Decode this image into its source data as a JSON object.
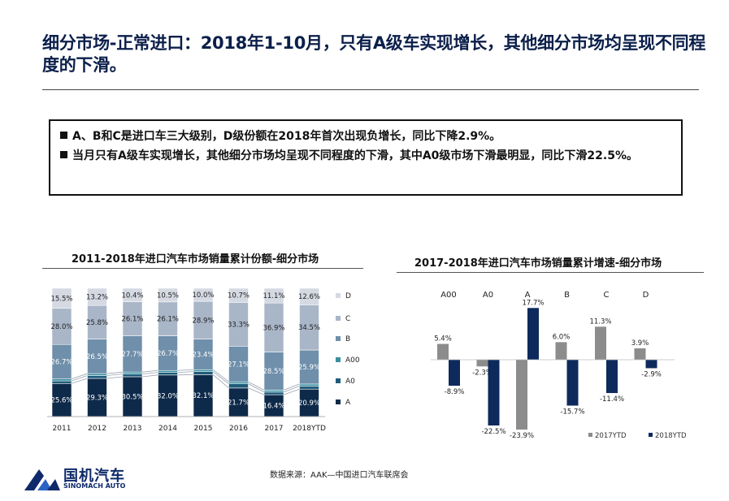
{
  "slide": {
    "title": "细分市场-正常进口：2018年1-10月，只有A级车实现增长，其他细分市场均呈现不同程度的下滑。",
    "bullets": [
      "A、B和C是进口车三大级别，D级份额在2018年首次出现负增长，同比下降2.9%。",
      "当月只有A级车实现增长，其他细分市场均呈现不同程度的下滑，其中A0级市场下滑最明显，同比下滑22.5%。"
    ],
    "source": "数据来源：AAK—中国进口汽车联席会",
    "logo_cn": "国机汽车",
    "logo_en": "SINOMACH AUTO"
  },
  "colors": {
    "title": "#0b1f4a",
    "A": "#0e2a4a",
    "A0": "#1f5c7a",
    "A00": "#3a8fa0",
    "B": "#6f8fab",
    "C": "#a9b6c8",
    "D": "#d4d9e2",
    "y2017": "#8c8c8c",
    "y2018": "#0e2a5c"
  },
  "chart_data": [
    {
      "type": "bar",
      "stacked": true,
      "normalized": true,
      "title": "2011-2018年进口汽车市场销量累计份额-细分市场",
      "categories": [
        "2011",
        "2012",
        "2013",
        "2014",
        "2015",
        "2016",
        "2017",
        "2018YTD"
      ],
      "series": [
        {
          "name": "A",
          "values": [
            25.6,
            29.3,
            30.5,
            32.0,
            32.1,
            21.7,
            16.4,
            20.9
          ],
          "labels": [
            "25.6%",
            "29.3%",
            "30.5%",
            "32.0%",
            "32.1%",
            "21.7%",
            "16.4%",
            "20.9%"
          ]
        },
        {
          "name": "A0",
          "values": [
            2.0,
            2.2,
            2.1,
            2.0,
            2.3,
            3.2,
            2.0,
            2.4
          ],
          "labels": null
        },
        {
          "name": "A00",
          "values": [
            1.5,
            1.5,
            1.5,
            1.5,
            1.5,
            1.5,
            1.5,
            1.5
          ],
          "labels": null
        },
        {
          "name": "B",
          "values": [
            26.7,
            26.5,
            27.7,
            26.7,
            23.4,
            27.1,
            28.5,
            25.9
          ],
          "labels": [
            "26.7%",
            "26.5%",
            "27.7%",
            "26.7%",
            "23.4%",
            "27.1%",
            "28.5%",
            "25.9%"
          ]
        },
        {
          "name": "C",
          "values": [
            28.0,
            25.8,
            26.1,
            26.1,
            28.9,
            33.3,
            36.9,
            34.5
          ],
          "labels": [
            "28.0%",
            "25.8%",
            "26.1%",
            "26.1%",
            "28.9%",
            "33.3%",
            "36.9%",
            "34.5%"
          ]
        },
        {
          "name": "D",
          "values": [
            15.5,
            13.2,
            10.4,
            10.5,
            10.0,
            10.7,
            11.1,
            12.6
          ],
          "labels": [
            "15.5%",
            "13.2%",
            "10.4%",
            "10.5%",
            "10.0%",
            "10.7%",
            "11.1%",
            "12.6%"
          ]
        }
      ],
      "legend": [
        "D",
        "C",
        "B",
        "A00",
        "A0",
        "A"
      ],
      "legend_position": "right"
    },
    {
      "type": "bar",
      "title": "2017-2018年进口汽车市场销量累计增速-细分市场",
      "categories": [
        "A00",
        "A0",
        "A",
        "B",
        "C",
        "D"
      ],
      "series": [
        {
          "name": "2017YTD",
          "values": [
            5.4,
            -2.3,
            -23.9,
            6.0,
            11.3,
            3.9
          ],
          "labels": [
            "5.4%",
            "-2.3%",
            "-23.9%",
            "6.0%",
            "11.3%",
            "3.9%"
          ]
        },
        {
          "name": "2018YTD",
          "values": [
            -8.9,
            -22.5,
            17.7,
            -15.7,
            -11.4,
            -2.9
          ],
          "labels": [
            "-8.9%",
            "-22.5%",
            "17.7%",
            "-15.7%",
            "-11.4%",
            "-2.9%"
          ]
        }
      ],
      "legend_position": "bottom",
      "category_labels_position": "top"
    }
  ]
}
